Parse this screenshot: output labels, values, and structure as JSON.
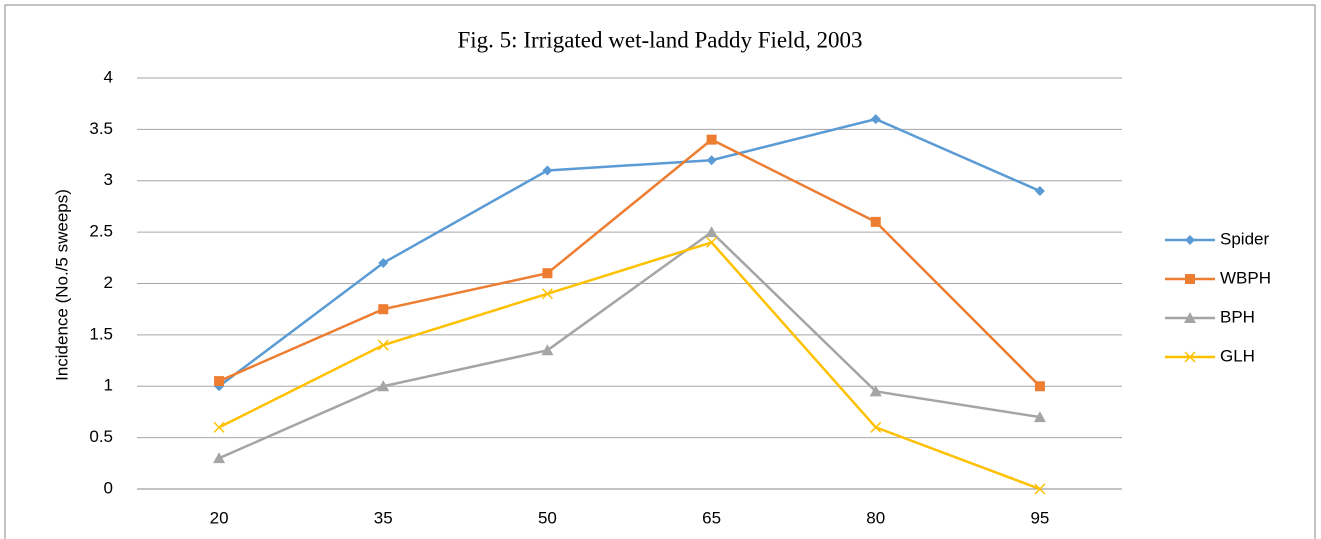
{
  "chart_data": {
    "type": "line",
    "title": "Fig. 5: Irrigated wet-land Paddy Field, 2003",
    "y_label": "Incidence (No./5 sweeps)",
    "categories": [
      "20",
      "35",
      "50",
      "65",
      "80",
      "95"
    ],
    "series": [
      {
        "name": "Spider",
        "color": "#5b9bd5",
        "marker": "diamond",
        "values": [
          1.0,
          2.2,
          3.1,
          3.2,
          3.6,
          2.9
        ]
      },
      {
        "name": "WBPH",
        "color": "#ed7d31",
        "marker": "square",
        "values": [
          1.05,
          1.75,
          2.1,
          3.4,
          2.6,
          1.0
        ]
      },
      {
        "name": "BPH",
        "color": "#a5a5a5",
        "marker": "triangle",
        "values": [
          0.3,
          1.0,
          1.35,
          2.5,
          0.95,
          0.7
        ]
      },
      {
        "name": "GLH",
        "color": "#ffc000",
        "marker": "x",
        "values": [
          0.6,
          1.4,
          1.9,
          2.4,
          0.6,
          0.0
        ]
      }
    ],
    "ylim": [
      0,
      4
    ],
    "yticks": [
      0,
      0.5,
      1,
      1.5,
      2,
      2.5,
      3,
      3.5,
      4
    ],
    "grid": true,
    "legend": "right"
  }
}
